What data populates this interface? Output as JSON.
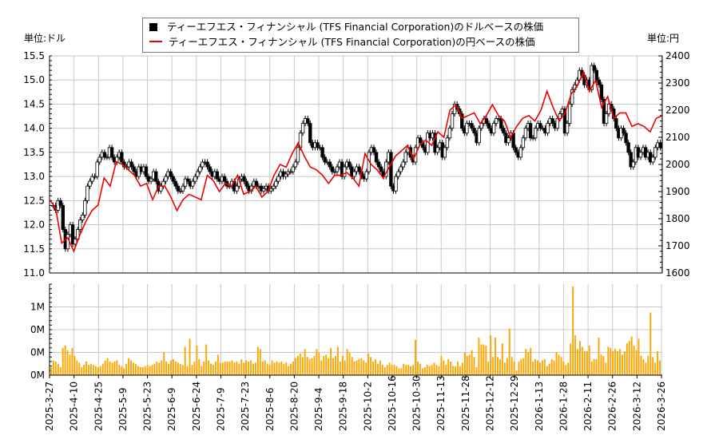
{
  "units": {
    "left": "単位:ドル",
    "right": "単位:円"
  },
  "legend": [
    {
      "label": "ティーエフエス・フィナンシャル (TFS Financial Corporation)のドルベースの株価",
      "color": "#000000",
      "marker": "square"
    },
    {
      "label": "ティーエフエス・フィナンシャル (TFS Financial Corporation)の円ベースの株価",
      "color": "#ee0000",
      "marker": "line"
    }
  ],
  "chart_data": {
    "type": "candlestick+line+bar",
    "grid": true,
    "legend_position": "top-center",
    "x_tick_labels": [
      "2025-3-27",
      "2025-4-10",
      "2025-4-25",
      "2025-5-9",
      "2025-5-23",
      "2025-6-9",
      "2025-6-24",
      "2025-7-9",
      "2025-7-23",
      "2025-8-6",
      "2025-8-20",
      "2025-9-4",
      "2025-9-18",
      "2025-10-2",
      "2025-10-16",
      "2025-10-30",
      "2025-11-13",
      "2025-11-28",
      "2025-12-12",
      "2025-12-29",
      "2026-1-13",
      "2026-1-28",
      "2026-2-11",
      "2026-2-26",
      "2026-3-12",
      "2026-3-26"
    ],
    "usd": {
      "ylim": [
        11.0,
        15.5
      ],
      "ticks": [
        "11.0",
        "11.5",
        "12.0",
        "12.5",
        "13.0",
        "13.5",
        "14.0",
        "14.5",
        "15.0",
        "15.5"
      ],
      "color": "#000000",
      "close": [
        12.4,
        12.3,
        12.5,
        12.4,
        11.9,
        11.5,
        11.8,
        12.0,
        11.6,
        11.7,
        11.9,
        12.1,
        12.2,
        12.5,
        12.8,
        12.9,
        13.0,
        13.0,
        13.3,
        13.4,
        13.5,
        13.4,
        13.4,
        13.6,
        13.4,
        13.3,
        13.4,
        13.5,
        13.3,
        13.2,
        13.2,
        13.3,
        13.2,
        13.1,
        13.0,
        13.2,
        13.1,
        13.2,
        13.0,
        12.9,
        12.95,
        13.1,
        12.9,
        12.7,
        12.8,
        12.9,
        13.0,
        13.1,
        13.0,
        12.9,
        12.8,
        12.7,
        12.7,
        12.8,
        12.95,
        12.9,
        12.8,
        12.9,
        13.0,
        13.1,
        13.2,
        13.3,
        13.3,
        13.2,
        13.1,
        13.0,
        13.1,
        12.95,
        12.9,
        13.0,
        12.9,
        12.8,
        12.8,
        12.9,
        12.7,
        12.8,
        12.95,
        13.0,
        12.9,
        12.8,
        12.7,
        12.8,
        12.9,
        12.8,
        12.8,
        12.7,
        12.75,
        12.8,
        12.7,
        12.75,
        12.8,
        12.9,
        13.0,
        13.1,
        13.0,
        13.05,
        13.1,
        13.1,
        13.2,
        13.3,
        13.6,
        13.9,
        14.1,
        14.2,
        14.1,
        13.7,
        13.6,
        13.7,
        13.6,
        13.6,
        13.4,
        13.3,
        13.3,
        13.2,
        13.1,
        13.1,
        13.2,
        13.3,
        13.0,
        13.2,
        13.3,
        13.2,
        13.0,
        13.1,
        13.2,
        13.1,
        13.0,
        12.95,
        13.1,
        13.5,
        13.6,
        13.5,
        13.3,
        13.2,
        13.1,
        13.0,
        13.3,
        13.5,
        12.8,
        12.7,
        13.0,
        13.1,
        13.2,
        13.3,
        13.5,
        13.6,
        13.4,
        13.3,
        13.6,
        13.8,
        13.7,
        13.6,
        13.5,
        13.9,
        13.8,
        13.9,
        13.5,
        13.6,
        13.7,
        13.4,
        13.6,
        13.8,
        14.0,
        14.3,
        14.5,
        14.4,
        14.3,
        14.0,
        13.9,
        14.1,
        14.1,
        14.0,
        13.9,
        13.7,
        14.0,
        14.1,
        14.2,
        14.1,
        14.0,
        13.9,
        14.1,
        14.2,
        14.2,
        14.0,
        13.9,
        13.7,
        13.8,
        13.9,
        13.6,
        13.5,
        13.4,
        13.6,
        13.8,
        14.0,
        14.1,
        13.8,
        13.8,
        14.0,
        14.1,
        14.0,
        14.0,
        13.9,
        14.1,
        14.2,
        14.1,
        14.0,
        14.2,
        14.3,
        14.4,
        13.9,
        14.1,
        14.5,
        14.8,
        14.9,
        15.0,
        15.2,
        15.1,
        14.9,
        15.0,
        14.8,
        15.3,
        15.2,
        15.0,
        14.9,
        14.6,
        14.1,
        14.3,
        14.5,
        14.4,
        14.2,
        14.0,
        13.8,
        14.0,
        13.9,
        13.7,
        13.5,
        13.2,
        13.3,
        13.6,
        13.4,
        13.5,
        13.6,
        13.4,
        13.5,
        13.3,
        13.4,
        13.6,
        13.7,
        13.6
      ]
    },
    "jpy": {
      "ylim": [
        1600,
        2400
      ],
      "ticks": [
        "1600",
        "1700",
        "1800",
        "1900",
        "2000",
        "2100",
        "2200",
        "2300",
        "2400"
      ],
      "color": "#ee0000",
      "values": [
        1870,
        1840,
        1710,
        1730,
        1680,
        1740,
        1790,
        1830,
        1850,
        1950,
        1920,
        2010,
        2000,
        1980,
        1960,
        1920,
        1930,
        1870,
        1920,
        1920,
        1880,
        1830,
        1870,
        1890,
        1880,
        1870,
        1960,
        1940,
        1900,
        1930,
        1920,
        1960,
        1890,
        1900,
        1920,
        1880,
        1900,
        1960,
        2000,
        1990,
        2040,
        2080,
        2030,
        1990,
        1980,
        1960,
        1930,
        1960,
        1960,
        1970,
        1950,
        1920,
        2040,
        2000,
        1980,
        1950,
        1990,
        2030,
        2050,
        2070,
        2020,
        2070,
        2090,
        2070,
        2120,
        2100,
        2200,
        2220,
        2170,
        2180,
        2190,
        2150,
        2180,
        2220,
        2180,
        2160,
        2100,
        2140,
        2170,
        2180,
        2160,
        2200,
        2270,
        2210,
        2160,
        2190,
        2260,
        2290,
        2340,
        2270,
        2310,
        2210,
        2250,
        2170,
        2190,
        2190,
        2140,
        2150,
        2140,
        2120,
        2170,
        2180
      ]
    },
    "volume": {
      "ylim": [
        0,
        0.8
      ],
      "unit": "M",
      "ticks": [
        {
          "value": 0,
          "label": "0M"
        },
        {
          "value": 0.2,
          "label": "0M"
        },
        {
          "value": 0.4,
          "label": "0M"
        },
        {
          "value": 0.6,
          "label": "1M"
        }
      ],
      "color": "#ffa500",
      "values": [
        0.07,
        0.13,
        0.12,
        0.1,
        0.07,
        0.24,
        0.26,
        0.22,
        0.18,
        0.24,
        0.17,
        0.13,
        0.11,
        0.07,
        0.09,
        0.12,
        0.09,
        0.1,
        0.09,
        0.08,
        0.07,
        0.08,
        0.1,
        0.13,
        0.15,
        0.12,
        0.11,
        0.12,
        0.13,
        0.09,
        0.08,
        0.06,
        0.1,
        0.15,
        0.13,
        0.11,
        0.1,
        0.08,
        0.07,
        0.07,
        0.08,
        0.09,
        0.08,
        0.09,
        0.1,
        0.12,
        0.11,
        0.13,
        0.2,
        0.12,
        0.1,
        0.13,
        0.14,
        0.12,
        0.11,
        0.1,
        0.09,
        0.25,
        0.08,
        0.32,
        0.09,
        0.12,
        0.26,
        0.14,
        0.08,
        0.12,
        0.27,
        0.13,
        0.1,
        0.09,
        0.12,
        0.18,
        0.11,
        0.11,
        0.12,
        0.12,
        0.12,
        0.13,
        0.11,
        0.12,
        0.1,
        0.14,
        0.11,
        0.13,
        0.12,
        0.13,
        0.1,
        0.11,
        0.25,
        0.23,
        0.12,
        0.13,
        0.1,
        0.09,
        0.13,
        0.11,
        0.12,
        0.11,
        0.12,
        0.1,
        0.11,
        0.08,
        0.1,
        0.12,
        0.15,
        0.17,
        0.19,
        0.16,
        0.23,
        0.16,
        0.14,
        0.15,
        0.17,
        0.23,
        0.2,
        0.13,
        0.17,
        0.18,
        0.15,
        0.24,
        0.15,
        0.17,
        0.25,
        0.12,
        0.17,
        0.13,
        0.23,
        0.2,
        0.16,
        0.12,
        0.13,
        0.14,
        0.15,
        0.13,
        0.11,
        0.19,
        0.16,
        0.12,
        0.14,
        0.1,
        0.13,
        0.09,
        0.07,
        0.09,
        0.11,
        0.09,
        0.09,
        0.08,
        0.06,
        0.06,
        0.1,
        0.09,
        0.09,
        0.08,
        0.09,
        0.31,
        0.12,
        0.1,
        0.06,
        0.07,
        0.09,
        0.08,
        0.09,
        0.11,
        0.09,
        0.08,
        0.17,
        0.13,
        0.09,
        0.14,
        0.12,
        0.08,
        0.08,
        0.12,
        0.08,
        0.11,
        0.2,
        0.17,
        0.18,
        0.22,
        0.16,
        0.07,
        0.33,
        0.27,
        0.27,
        0.26,
        0.12,
        0.35,
        0.16,
        0.33,
        0.16,
        0.14,
        0.28,
        0.11,
        0.15,
        0.41,
        0.16,
        0.12,
        0.04,
        0.12,
        0.14,
        0.15,
        0.23,
        0.2,
        0.24,
        0.12,
        0.14,
        0.13,
        0.11,
        0.13,
        0.14,
        0.08,
        0.1,
        0.14,
        0.13,
        0.2,
        0.18,
        0.16,
        0.12,
        0.09,
        0.11,
        0.28,
        0.78,
        0.35,
        0.23,
        0.3,
        0.25,
        0.21,
        0.21,
        0.26,
        0.12,
        0.14,
        0.14,
        0.33,
        0.18,
        0.17,
        0.11,
        0.25,
        0.24,
        0.21,
        0.23,
        0.21,
        0.23,
        0.18,
        0.21,
        0.28,
        0.3,
        0.34,
        0.26,
        0.22,
        0.32,
        0.17,
        0.14,
        0.11,
        0.17,
        0.55,
        0.16,
        0.11,
        0.21,
        0.13
      ]
    }
  }
}
